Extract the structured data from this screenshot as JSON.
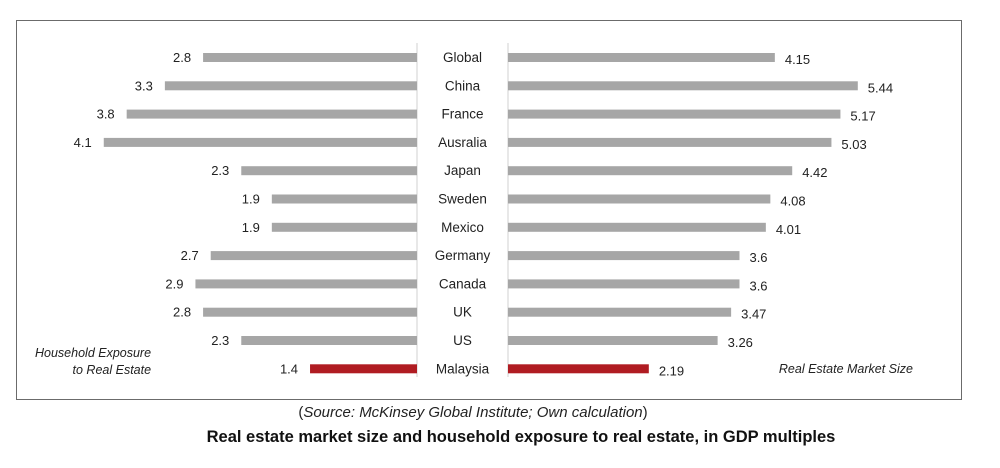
{
  "chart_data": {
    "type": "bar",
    "layout": "butterfly",
    "categories": [
      "Global",
      "China",
      "France",
      "Ausralia",
      "Japan",
      "Sweden",
      "Mexico",
      "Germany",
      "Canada",
      "UK",
      "US",
      "Malaysia"
    ],
    "series": [
      {
        "name": "Household Exposure to Real Estate",
        "values": [
          2.8,
          3.3,
          3.8,
          4.1,
          2.3,
          1.9,
          1.9,
          2.7,
          2.9,
          2.8,
          2.3,
          1.4
        ],
        "labels": [
          "2.8",
          "3.3",
          "3.8",
          "4.1",
          "2.3",
          "1.9",
          "1.9",
          "2.7",
          "2.9",
          "2.8",
          "2.3",
          "1.4"
        ]
      },
      {
        "name": "Real Estate Market Size",
        "values": [
          4.15,
          5.44,
          5.17,
          5.03,
          4.42,
          4.08,
          4.01,
          3.6,
          3.6,
          3.47,
          3.26,
          2.19
        ],
        "labels": [
          "4.15",
          "5.44",
          "5.17",
          "5.03",
          "4.42",
          "4.08",
          "4.01",
          "3.6",
          "3.6",
          "3.47",
          "3.26",
          "2.19"
        ]
      }
    ],
    "left_label_lines": [
      "Household Exposure",
      "to Real Estate"
    ],
    "right_label": "Real Estate Market Size",
    "colors": {
      "default": "#a6a6a6",
      "highlight": "#b01c22",
      "highlight_category": "Malaysia"
    }
  },
  "source": {
    "open": "(",
    "text": "Source: McKinsey Global Institute; Own calculation",
    "close": ")"
  },
  "caption": "Real estate market size and household exposure to real estate, in GDP multiples"
}
